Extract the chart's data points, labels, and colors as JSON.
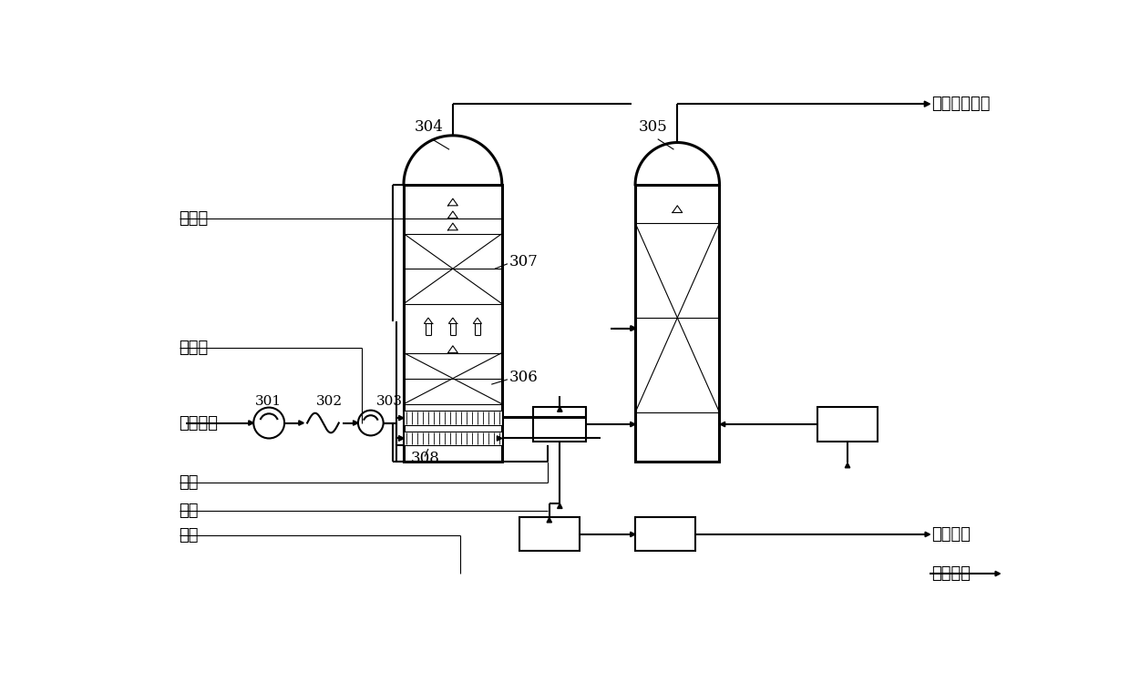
{
  "bg_color": "#ffffff",
  "line_color": "#000000",
  "lw_thin": 0.8,
  "lw_med": 1.5,
  "lw_thick": 2.2,
  "font_size_label": 13,
  "font_size_num": 11,
  "labels": {
    "gongyi_shui": "工艺水",
    "chu_yang_shui": "除氧水",
    "lian_jiao_yan_qi": "炼焦烟气",
    "chou_yang": "臭氧",
    "kong_qi": "空气",
    "an_shui": "氨水",
    "da_biao": "达标排放烟气",
    "liu_an": "硫铵固体",
    "di_ya": "低压蒸汽",
    "n304": "304",
    "n305": "305",
    "n306": "306",
    "n307": "307",
    "n308": "308",
    "n301": "301",
    "n302": "302",
    "n303": "303"
  }
}
